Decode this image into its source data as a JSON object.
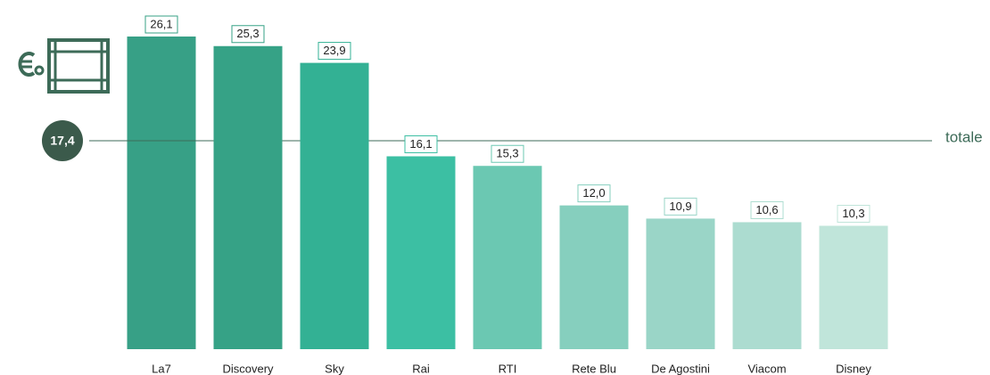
{
  "chart_data": {
    "type": "bar",
    "categories": [
      "La7",
      "Discovery",
      "Sky",
      "Rai",
      "RTI",
      "Rete Blu",
      "De Agostini",
      "Viacom",
      "Disney"
    ],
    "values": [
      26.1,
      25.3,
      23.9,
      16.1,
      15.3,
      12.0,
      10.9,
      10.6,
      10.3
    ],
    "value_labels": [
      "26,1",
      "25,3",
      "23,9",
      "16,1",
      "15,3",
      "12,0",
      "10,9",
      "10,6",
      "10,3"
    ],
    "colors": [
      "#37a086",
      "#36a286",
      "#33b194",
      "#3cbfa3",
      "#6bc8b2",
      "#86cfbe",
      "#9ad5c7",
      "#acdcd0",
      "#c0e5da"
    ],
    "reference": {
      "value": 17.4,
      "value_label": "17,4",
      "label": "totale"
    }
  }
}
